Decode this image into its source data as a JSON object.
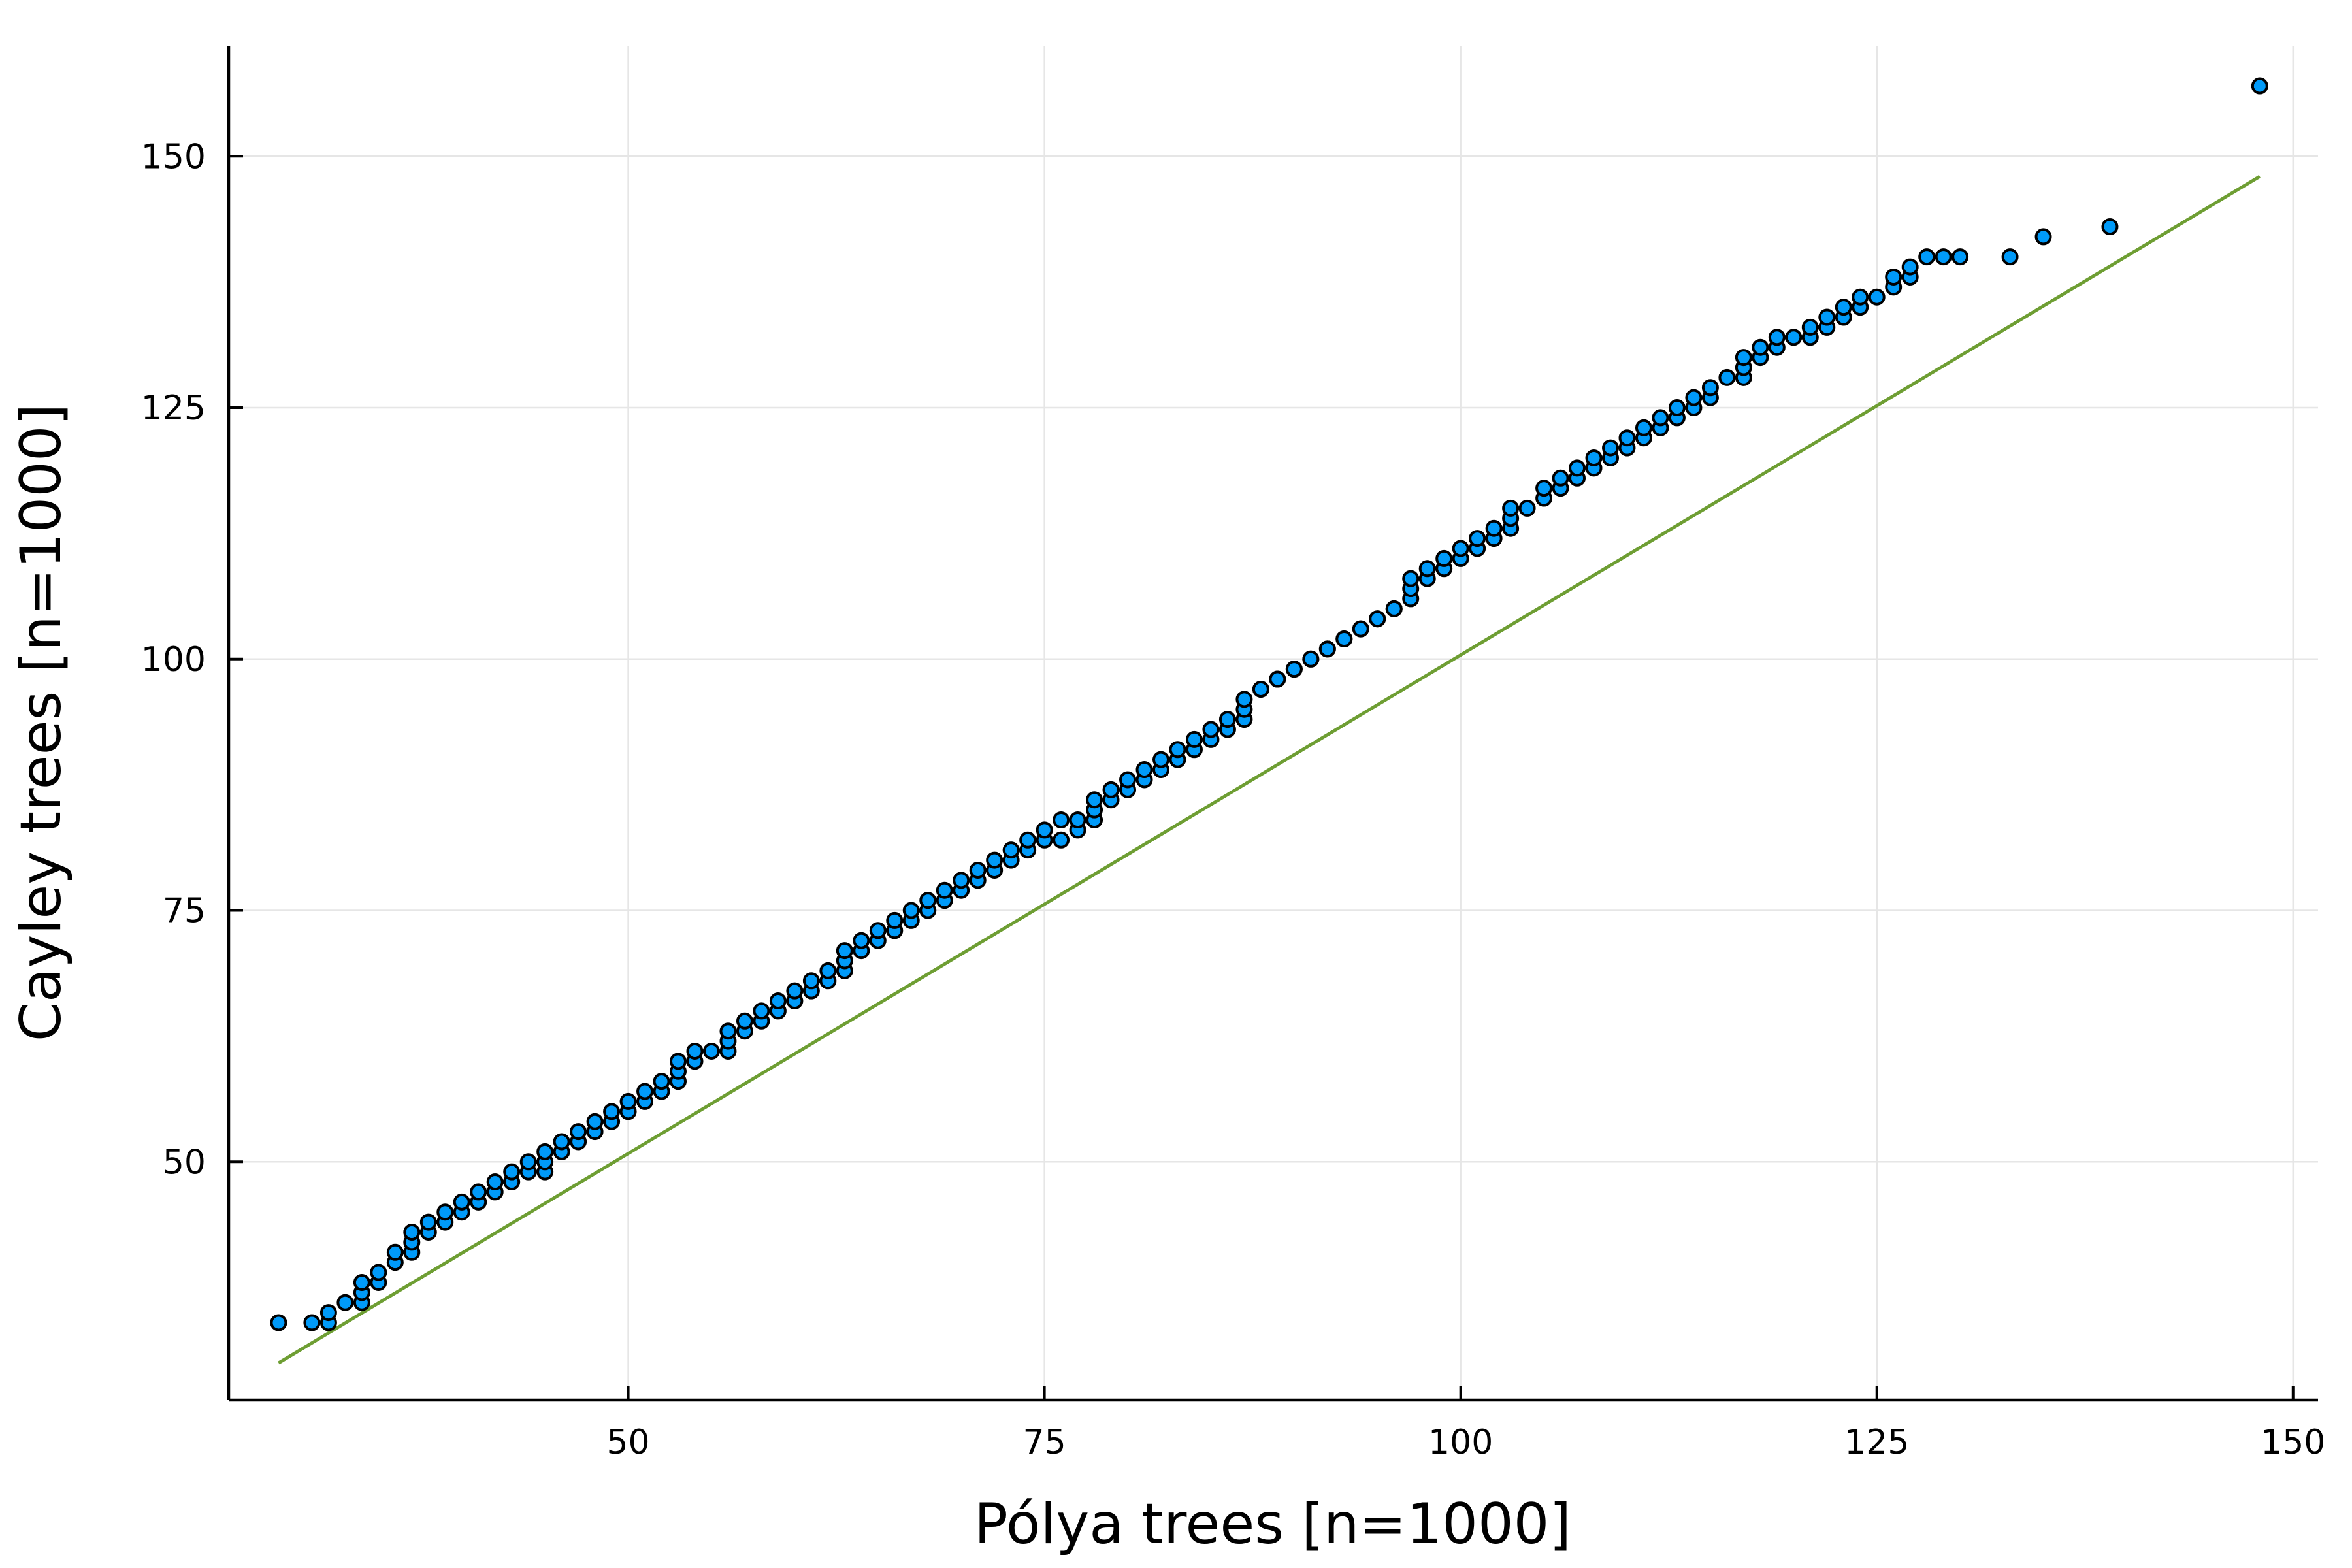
{
  "chart_data": {
    "type": "scatter",
    "title": "",
    "xlabel": "Pólya trees [n=1000]",
    "ylabel": "Cayley trees [n=1000]",
    "xlim": [
      26,
      151.5
    ],
    "ylim": [
      26.3,
      161
    ],
    "xticks": [
      50,
      75,
      100,
      125,
      150
    ],
    "yticks": [
      50,
      75,
      100,
      125,
      150
    ],
    "grid": true,
    "legend": "none",
    "colors": {
      "points": "#009af9",
      "point_edge": "#000000",
      "reference_line": "#6e9e33",
      "grid": "#e6e6e6",
      "axis": "#000000"
    },
    "reference_line": {
      "x": [
        29,
        148
      ],
      "y": [
        30,
        148
      ]
    },
    "series": [
      {
        "x": [
          29,
          31,
          32,
          32,
          33,
          34,
          34,
          34,
          35,
          35,
          36,
          36,
          37,
          37,
          37,
          38,
          38,
          39,
          39,
          40,
          40,
          41,
          41,
          42,
          42,
          43,
          43,
          44,
          44,
          45,
          45,
          45,
          46,
          46,
          47,
          47,
          48,
          48,
          49,
          49,
          50,
          50,
          51,
          51,
          52,
          52,
          53,
          53,
          53,
          54,
          54,
          55,
          56,
          56,
          56,
          57,
          57,
          58,
          58,
          59,
          59,
          60,
          60,
          61,
          61,
          62,
          62,
          63,
          63,
          63,
          64,
          64,
          65,
          65,
          66,
          66,
          67,
          67,
          68,
          68,
          69,
          69,
          70,
          70,
          71,
          71,
          72,
          72,
          73,
          73,
          74,
          74,
          75,
          75,
          76,
          76,
          77,
          77,
          78,
          78,
          78,
          79,
          79,
          80,
          80,
          81,
          81,
          82,
          82,
          83,
          83,
          84,
          84,
          85,
          85,
          86,
          86,
          87,
          87,
          87,
          88,
          88,
          89,
          89,
          90,
          90,
          91,
          91,
          92,
          92,
          93,
          93,
          94,
          94,
          95,
          95,
          96,
          96,
          97,
          97,
          97,
          98,
          98,
          99,
          99,
          100,
          100,
          101,
          101,
          102,
          102,
          103,
          103,
          103,
          104,
          105,
          105,
          106,
          106,
          107,
          107,
          108,
          108,
          109,
          109,
          110,
          110,
          111,
          111,
          112,
          112,
          113,
          113,
          114,
          114,
          115,
          115,
          116,
          117,
          117,
          117,
          118,
          118,
          119,
          119,
          120,
          121,
          121,
          122,
          122,
          123,
          123,
          124,
          124,
          125,
          126,
          126,
          127,
          127,
          128,
          129,
          130,
          133,
          135,
          139,
          148
        ],
        "y": [
          34,
          34,
          34,
          35,
          36,
          36,
          37,
          38,
          38,
          39,
          40,
          41,
          41,
          42,
          43,
          43,
          44,
          44,
          45,
          45,
          46,
          46,
          47,
          47,
          48,
          48,
          49,
          49,
          50,
          49,
          50,
          51,
          51,
          52,
          52,
          53,
          53,
          54,
          54,
          55,
          55,
          56,
          56,
          57,
          57,
          58,
          58,
          59,
          60,
          60,
          61,
          61,
          61,
          62,
          63,
          63,
          64,
          64,
          65,
          65,
          66,
          66,
          67,
          67,
          68,
          68,
          69,
          69,
          70,
          71,
          71,
          72,
          72,
          73,
          73,
          74,
          74,
          75,
          75,
          76,
          76,
          77,
          77,
          78,
          78,
          79,
          79,
          80,
          80,
          81,
          81,
          82,
          82,
          83,
          82,
          84,
          83,
          84,
          84,
          85,
          86,
          86,
          87,
          87,
          88,
          88,
          89,
          89,
          90,
          90,
          91,
          91,
          92,
          92,
          93,
          93,
          94,
          94,
          95,
          96,
          97,
          97,
          98,
          98,
          99,
          99,
          100,
          100,
          101,
          101,
          102,
          102,
          103,
          103,
          104,
          104,
          105,
          105,
          106,
          107,
          108,
          108,
          109,
          109,
          110,
          110,
          111,
          111,
          112,
          112,
          113,
          113,
          114,
          115,
          115,
          116,
          117,
          117,
          118,
          118,
          119,
          119,
          120,
          120,
          121,
          121,
          122,
          122,
          123,
          123,
          124,
          124,
          125,
          125,
          126,
          126,
          127,
          128,
          128,
          129,
          130,
          130,
          131,
          131,
          132,
          132,
          132,
          133,
          133,
          134,
          134,
          135,
          135,
          136,
          136,
          137,
          138,
          138,
          139,
          140,
          140,
          140,
          140,
          142,
          143,
          157
        ]
      }
    ]
  }
}
